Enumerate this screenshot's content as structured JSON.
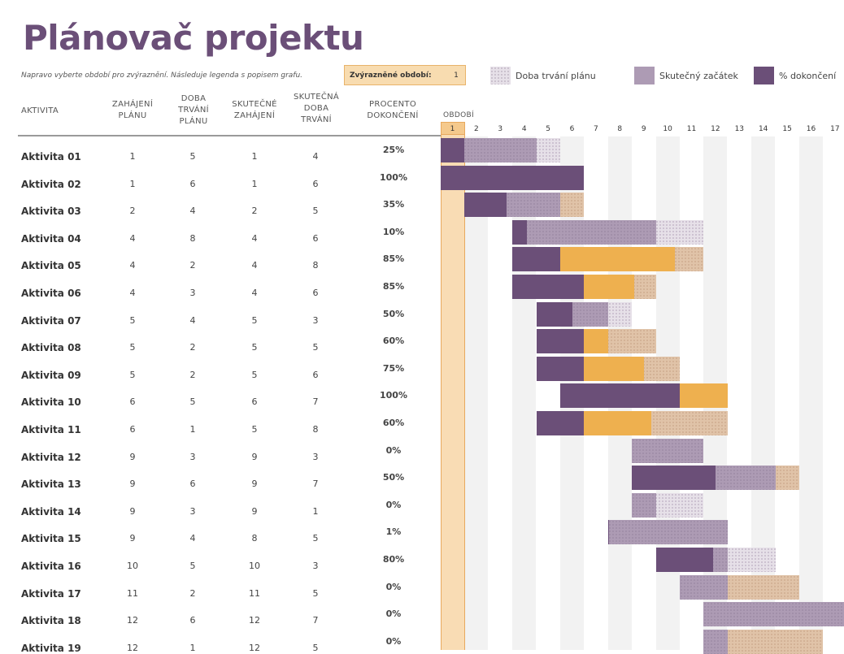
{
  "title": "Plánovač projektu",
  "instruction": "Napravo vyberte období pro zvýraznění.  Následuje legenda s popisem grafu.",
  "highlight": {
    "label": "Zvýrazněné období:",
    "value": "1"
  },
  "legend": {
    "plan": "Doba trvání plánu",
    "actual": "Skutečný začátek",
    "pct": "% dokončení"
  },
  "headers": {
    "activity": "AKTIVITA",
    "plan_start": [
      "ZAHÁJENÍ",
      "PLÁNU"
    ],
    "plan_dur": [
      "DOBA",
      "TRVÁNÍ",
      "PLÁNU"
    ],
    "act_start": [
      "SKUTEČNÉ",
      "ZAHÁJENÍ"
    ],
    "act_dur": [
      "SKUTEČNÁ",
      "DOBA",
      "TRVÁNÍ"
    ],
    "pct": [
      "PROCENTO",
      "DOKONČENÍ"
    ],
    "period": "OBDOBÍ"
  },
  "periods": [
    "1",
    "2",
    "3",
    "4",
    "5",
    "6",
    "7",
    "8",
    "9",
    "10",
    "11",
    "12",
    "13",
    "14",
    "15",
    "16",
    "17"
  ],
  "rows": [
    {
      "name": "Aktivita 01",
      "ps": 1,
      "pd": 5,
      "as": 1,
      "ad": 4,
      "pct": "25%"
    },
    {
      "name": "Aktivita 02",
      "ps": 1,
      "pd": 6,
      "as": 1,
      "ad": 6,
      "pct": "100%"
    },
    {
      "name": "Aktivita 03",
      "ps": 2,
      "pd": 4,
      "as": 2,
      "ad": 5,
      "pct": "35%"
    },
    {
      "name": "Aktivita 04",
      "ps": 4,
      "pd": 8,
      "as": 4,
      "ad": 6,
      "pct": "10%"
    },
    {
      "name": "Aktivita 05",
      "ps": 4,
      "pd": 2,
      "as": 4,
      "ad": 8,
      "pct": "85%"
    },
    {
      "name": "Aktivita 06",
      "ps": 4,
      "pd": 3,
      "as": 4,
      "ad": 6,
      "pct": "85%"
    },
    {
      "name": "Aktivita 07",
      "ps": 5,
      "pd": 4,
      "as": 5,
      "ad": 3,
      "pct": "50%"
    },
    {
      "name": "Aktivita 08",
      "ps": 5,
      "pd": 2,
      "as": 5,
      "ad": 5,
      "pct": "60%"
    },
    {
      "name": "Aktivita 09",
      "ps": 5,
      "pd": 2,
      "as": 5,
      "ad": 6,
      "pct": "75%"
    },
    {
      "name": "Aktivita 10",
      "ps": 6,
      "pd": 5,
      "as": 6,
      "ad": 7,
      "pct": "100%"
    },
    {
      "name": "Aktivita 11",
      "ps": 6,
      "pd": 1,
      "as": 5,
      "ad": 8,
      "pct": "60%"
    },
    {
      "name": "Aktivita 12",
      "ps": 9,
      "pd": 3,
      "as": 9,
      "ad": 3,
      "pct": "0%"
    },
    {
      "name": "Aktivita 13",
      "ps": 9,
      "pd": 6,
      "as": 9,
      "ad": 7,
      "pct": "50%"
    },
    {
      "name": "Aktivita 14",
      "ps": 9,
      "pd": 3,
      "as": 9,
      "ad": 1,
      "pct": "0%"
    },
    {
      "name": "Aktivita 15",
      "ps": 9,
      "pd": 4,
      "as": 8,
      "ad": 5,
      "pct": "1%"
    },
    {
      "name": "Aktivita 16",
      "ps": 10,
      "pd": 5,
      "as": 10,
      "ad": 3,
      "pct": "80%"
    },
    {
      "name": "Aktivita 17",
      "ps": 11,
      "pd": 2,
      "as": 11,
      "ad": 5,
      "pct": "0%"
    },
    {
      "name": "Aktivita 18",
      "ps": 12,
      "pd": 6,
      "as": 12,
      "ad": 7,
      "pct": "0%"
    },
    {
      "name": "Aktivita 19",
      "ps": 12,
      "pd": 1,
      "as": 12,
      "ad": 5,
      "pct": "0%"
    }
  ],
  "colors": {
    "accent": "#6b4f78",
    "actual": "#ad9bb4",
    "orange": "#eeb04f",
    "highlight": "#f9dcb4"
  }
}
